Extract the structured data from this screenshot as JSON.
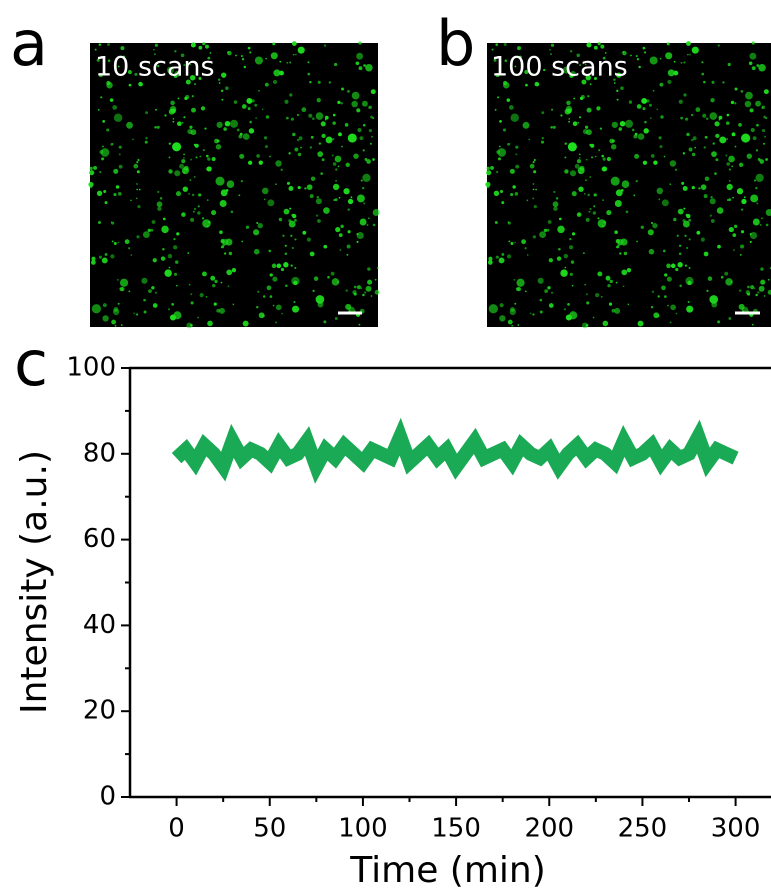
{
  "panel_labels": [
    "a",
    "b",
    "c"
  ],
  "images": [
    {
      "caption": "10 scans"
    },
    {
      "caption": "100 scans"
    }
  ],
  "chart_data": {
    "type": "line",
    "x_label": "Time (min)",
    "y_label": "Intensity (a.u.)",
    "xlim": [
      -25,
      319
    ],
    "ylim": [
      0,
      100
    ],
    "xticks": [
      0,
      50,
      100,
      150,
      200,
      250,
      300
    ],
    "yticks": [
      0,
      20,
      40,
      60,
      80,
      100
    ],
    "xminorticks": [
      25,
      75,
      125,
      175,
      225,
      275
    ],
    "yminorticks": [
      10,
      30,
      50,
      70,
      90
    ],
    "series": [
      {
        "color": "#1aaa55",
        "x": [
          0,
          5,
          10,
          15,
          20,
          25,
          30,
          35,
          40,
          45,
          50,
          55,
          60,
          65,
          70,
          75,
          80,
          85,
          90,
          95,
          100,
          105,
          110,
          115,
          120,
          125,
          130,
          135,
          140,
          145,
          150,
          155,
          160,
          165,
          170,
          175,
          180,
          185,
          190,
          195,
          200,
          205,
          210,
          215,
          220,
          225,
          230,
          235,
          240,
          245,
          250,
          255,
          260,
          265,
          270,
          275,
          280,
          285,
          290,
          295,
          300
        ],
        "values": [
          79,
          81,
          78,
          82,
          80,
          77,
          83,
          79,
          81,
          80,
          78,
          82,
          79,
          80,
          83,
          77,
          81,
          79,
          82,
          80,
          78,
          81,
          80,
          79,
          84,
          78,
          80,
          82,
          79,
          81,
          77,
          80,
          83,
          79,
          80,
          81,
          78,
          82,
          80,
          79,
          81,
          77,
          80,
          82,
          79,
          81,
          80,
          78,
          83,
          79,
          80,
          82,
          78,
          81,
          79,
          80,
          84,
          78,
          81,
          80,
          79
        ]
      }
    ]
  }
}
